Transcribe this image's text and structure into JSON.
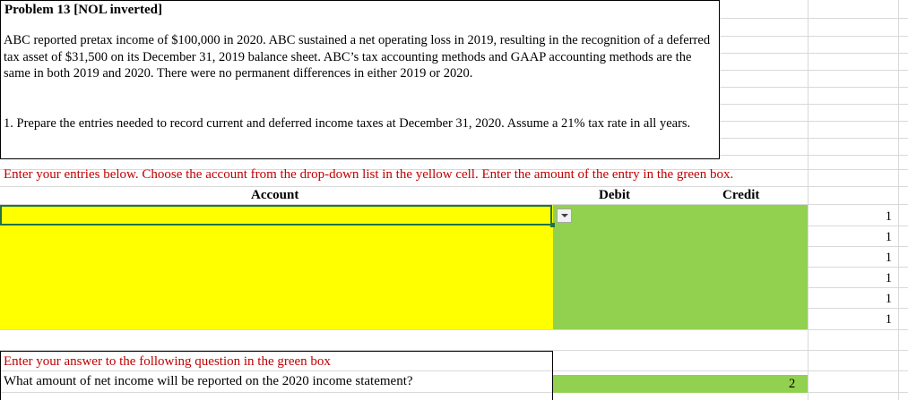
{
  "problem": {
    "title": "Problem 13 [NOL inverted]",
    "paragraph1": "ABC reported pretax income of $100,000 in 2020. ABC sustained a net operating loss in 2019, resulting in the recognition of a deferred tax asset of $31,500 on its December 31, 2019 balance sheet. ABC’s tax accounting methods and GAAP accounting methods are the same in both 2019 and 2020. There were no permanent differences in either 2019 or 2020.",
    "paragraph2": "1. Prepare the entries needed to record current and deferred income taxes at December 31, 2020. Assume a 21% tax rate in all years."
  },
  "entries": {
    "instruction": "Enter your entries below. Choose the account from the drop-down list in the yellow cell. Enter the amount of the entry in the green box.",
    "headers": {
      "account": "Account",
      "debit": "Debit",
      "credit": "Credit"
    },
    "row_markers": [
      "1",
      "1",
      "1",
      "1",
      "1",
      "1"
    ],
    "colors": {
      "account_cell": "#ffff00",
      "amount_cell": "#92d050",
      "instruction_text": "#c00000"
    }
  },
  "question": {
    "instruction": "Enter your answer to the following question in the green box",
    "text": "What amount of net income will be reported on the 2020 income statement?",
    "marker": "2"
  }
}
